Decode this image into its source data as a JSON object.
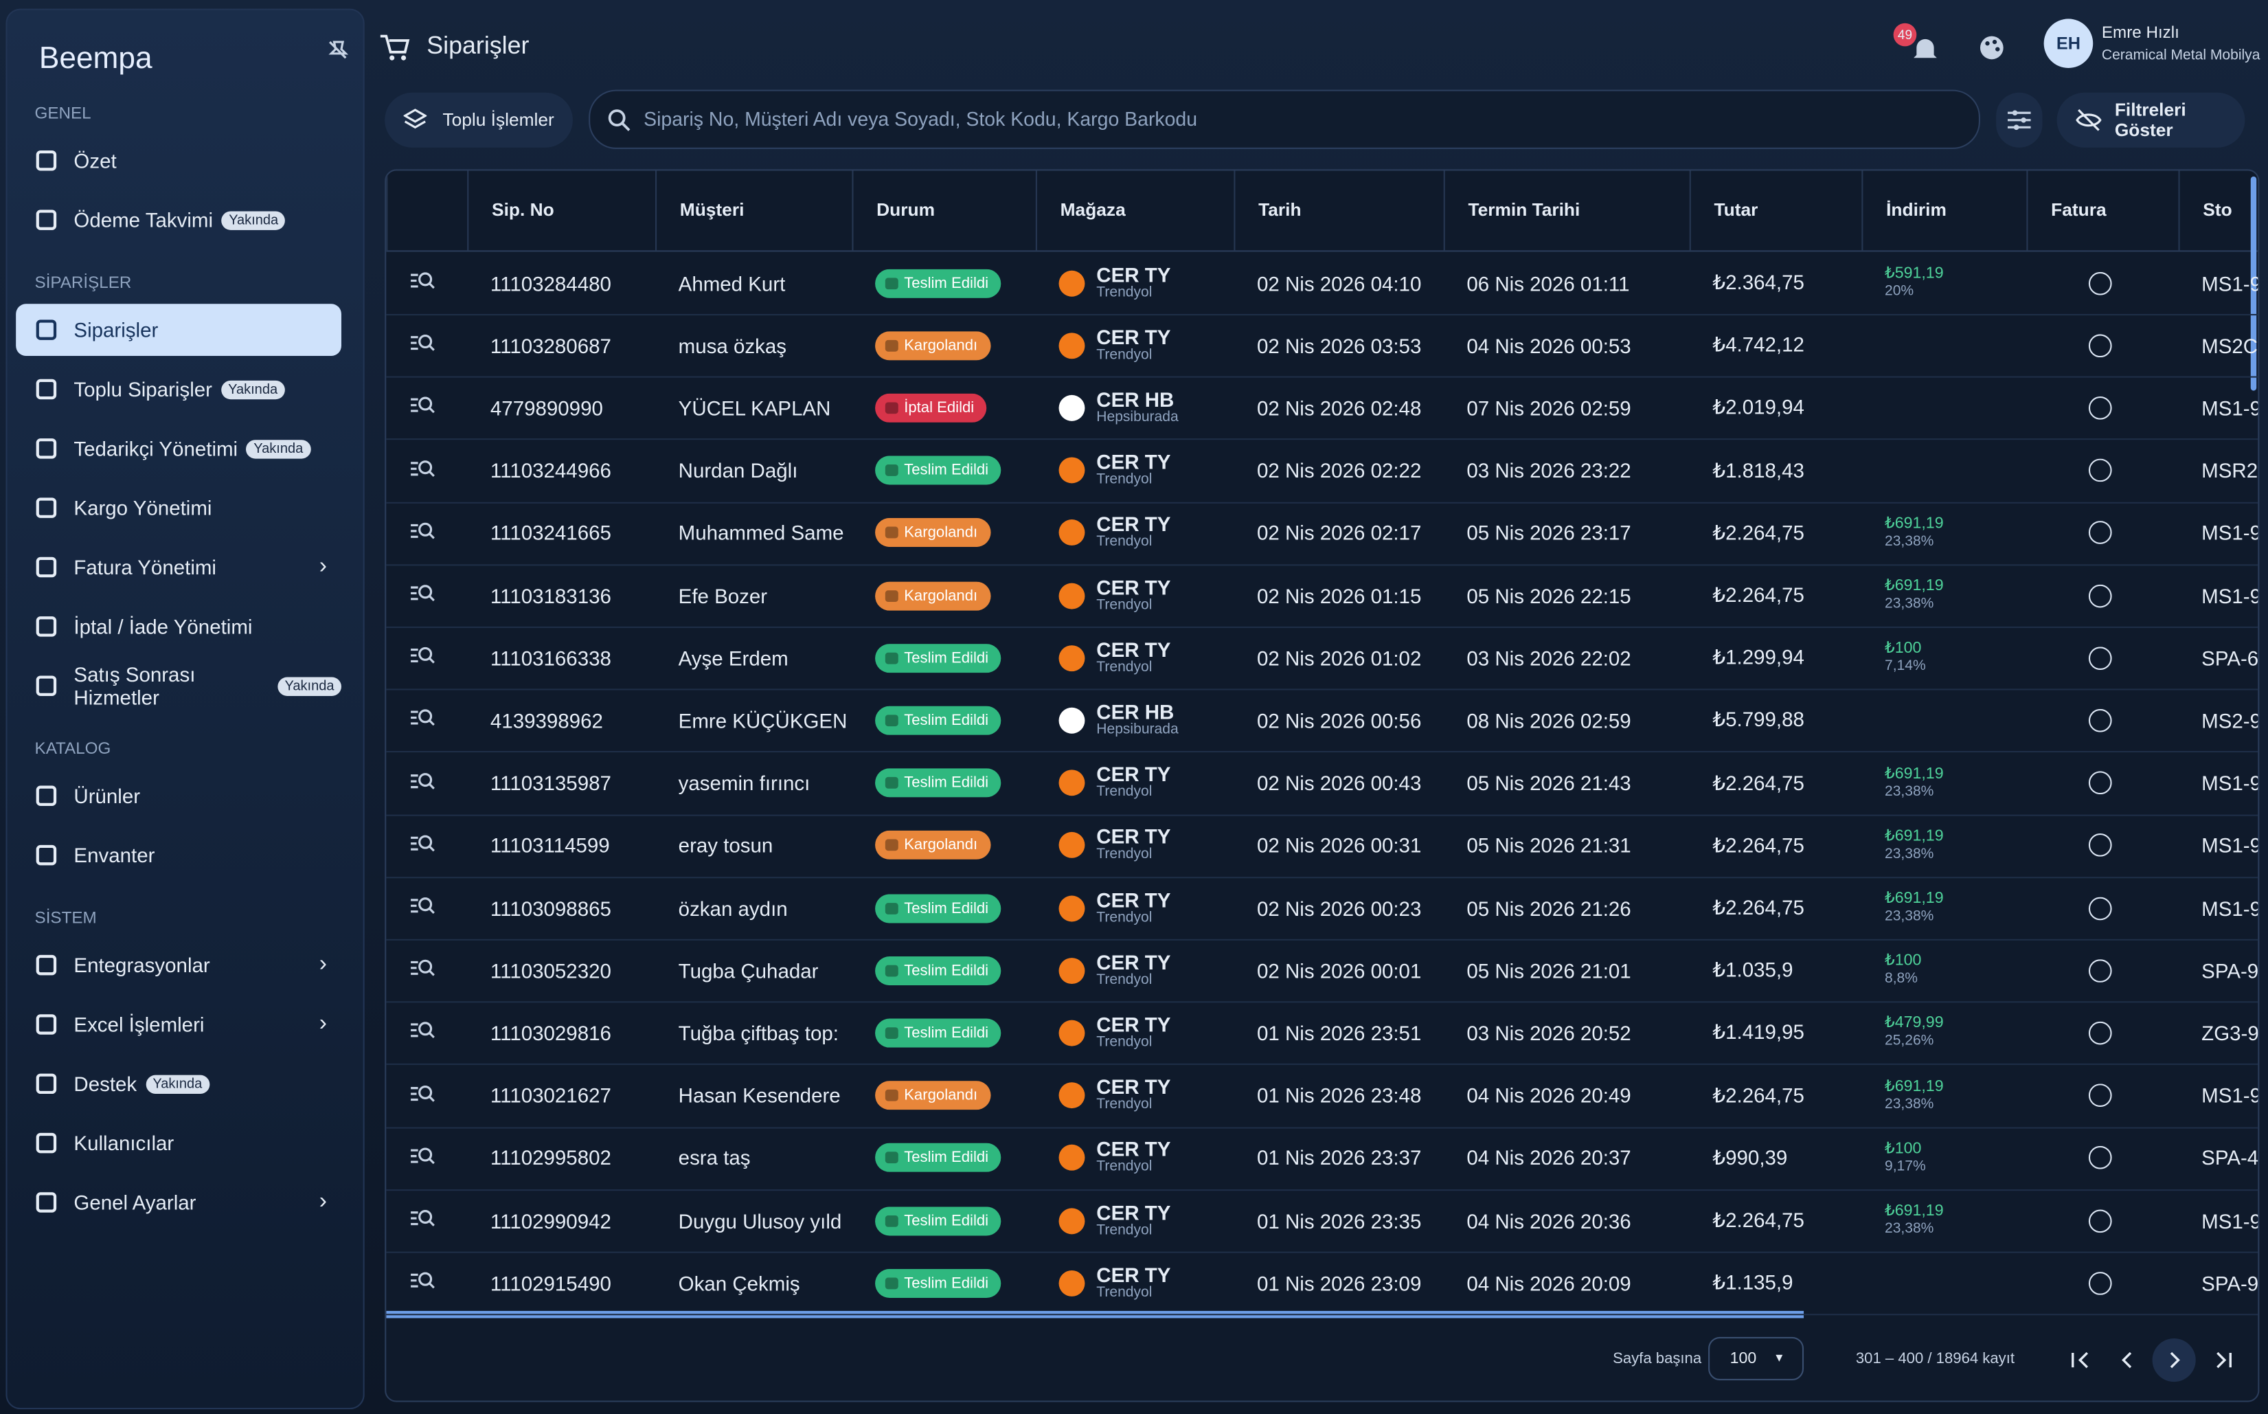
{
  "sidebar": {
    "brand": "Beempa",
    "sections": [
      {
        "title": "GENEL",
        "items": [
          {
            "label": "Özet"
          },
          {
            "label": "Ödeme Takvimi",
            "badge": "Yakında"
          }
        ]
      },
      {
        "title": "SİPARİŞLER",
        "items": [
          {
            "label": "Siparişler",
            "active": true
          },
          {
            "label": "Toplu Siparişler",
            "badge": "Yakında"
          },
          {
            "label": "Tedarikçi Yönetimi",
            "badge": "Yakında"
          },
          {
            "label": "Kargo Yönetimi"
          },
          {
            "label": "Fatura Yönetimi",
            "submenu": true
          },
          {
            "label": "İptal / İade Yönetimi"
          },
          {
            "label": "Satış Sonrası Hizmetler",
            "badge": "Yakında"
          }
        ]
      },
      {
        "title": "KATALOG",
        "items": [
          {
            "label": "Ürünler"
          },
          {
            "label": "Envanter"
          }
        ]
      },
      {
        "title": "SİSTEM",
        "items": [
          {
            "label": "Entegrasyonlar",
            "submenu": true
          },
          {
            "label": "Excel İşlemleri",
            "submenu": true
          },
          {
            "label": "Destek",
            "badge": "Yakında"
          },
          {
            "label": "Kullanıcılar"
          },
          {
            "label": "Genel Ayarlar",
            "submenu": true
          }
        ]
      }
    ]
  },
  "header": {
    "title": "Siparişler",
    "notifications": "49",
    "initials": "EH",
    "user": "Emre Hızlı",
    "company": "Ceramical Metal Mobilya"
  },
  "toolbar": {
    "bulk": "Toplu İşlemler",
    "search": "Sipariş No, Müşteri Adı veya Soyadı, Stok Kodu, Kargo Barkodu",
    "filters": "Filtreleri Göster"
  },
  "table": {
    "columns": [
      "Sip. No",
      "Müşteri",
      "Durum",
      "Mağaza",
      "Tarih",
      "Termin Tarihi",
      "Tutar",
      "İndirim",
      "Fatura",
      "Sto"
    ],
    "rows": [
      {
        "no": "11103284480",
        "customer": "Ahmed Kurt",
        "status": "Teslim Edildi",
        "status_color": "#2fb87f",
        "store": "CER TY",
        "channel": "Trendyol",
        "date": "02 Nis 2026 04:10",
        "term": "06 Nis 2026 01:11",
        "amount": "₺2.364,75",
        "discount": "₺591,19",
        "discount_pct": "20%",
        "stock": "MS1-9"
      },
      {
        "no": "11103280687",
        "customer": "musa özkaş",
        "status": "Kargolandı",
        "status_color": "#e8863a",
        "store": "CER TY",
        "channel": "Trendyol",
        "date": "02 Nis 2026 03:53",
        "term": "04 Nis 2026 00:53",
        "amount": "₺4.742,12",
        "discount": null,
        "discount_pct": null,
        "stock": "MS2C"
      },
      {
        "no": "4779890990",
        "customer": "YÜCEL KAPLAN",
        "status": "İptal Edildi",
        "status_color": "#d8344a",
        "store": "CER HB",
        "channel": "Hepsiburada",
        "date": "02 Nis 2026 02:48",
        "term": "07 Nis 2026 02:59",
        "amount": "₺2.019,94",
        "discount": null,
        "discount_pct": null,
        "stock": "MS1-9"
      },
      {
        "no": "11103244966",
        "customer": "Nurdan Dağlı",
        "status": "Teslim Edildi",
        "status_color": "#2fb87f",
        "store": "CER TY",
        "channel": "Trendyol",
        "date": "02 Nis 2026 02:22",
        "term": "03 Nis 2026 23:22",
        "amount": "₺1.818,43",
        "discount": null,
        "discount_pct": null,
        "stock": "MSR2-"
      },
      {
        "no": "11103241665",
        "customer": "Muhammed Same",
        "status": "Kargolandı",
        "status_color": "#e8863a",
        "store": "CER TY",
        "channel": "Trendyol",
        "date": "02 Nis 2026 02:17",
        "term": "05 Nis 2026 23:17",
        "amount": "₺2.264,75",
        "discount": "₺691,19",
        "discount_pct": "23,38%",
        "stock": "MS1-9"
      },
      {
        "no": "11103183136",
        "customer": "Efe Bozer",
        "status": "Kargolandı",
        "status_color": "#e8863a",
        "store": "CER TY",
        "channel": "Trendyol",
        "date": "02 Nis 2026 01:15",
        "term": "05 Nis 2026 22:15",
        "amount": "₺2.264,75",
        "discount": "₺691,19",
        "discount_pct": "23,38%",
        "stock": "MS1-9"
      },
      {
        "no": "11103166338",
        "customer": "Ayşe Erdem",
        "status": "Teslim Edildi",
        "status_color": "#2fb87f",
        "store": "CER TY",
        "channel": "Trendyol",
        "date": "02 Nis 2026 01:02",
        "term": "03 Nis 2026 22:02",
        "amount": "₺1.299,94",
        "discount": "₺100",
        "discount_pct": "7,14%",
        "stock": "SPA-6"
      },
      {
        "no": "4139398962",
        "customer": "Emre KÜÇÜKGEN",
        "status": "Teslim Edildi",
        "status_color": "#2fb87f",
        "store": "CER HB",
        "channel": "Hepsiburada",
        "date": "02 Nis 2026 00:56",
        "term": "08 Nis 2026 02:59",
        "amount": "₺5.799,88",
        "discount": null,
        "discount_pct": null,
        "stock": "MS2-9"
      },
      {
        "no": "11103135987",
        "customer": "yasemin fırıncı",
        "status": "Teslim Edildi",
        "status_color": "#2fb87f",
        "store": "CER TY",
        "channel": "Trendyol",
        "date": "02 Nis 2026 00:43",
        "term": "05 Nis 2026 21:43",
        "amount": "₺2.264,75",
        "discount": "₺691,19",
        "discount_pct": "23,38%",
        "stock": "MS1-9"
      },
      {
        "no": "11103114599",
        "customer": "eray tosun",
        "status": "Kargolandı",
        "status_color": "#e8863a",
        "store": "CER TY",
        "channel": "Trendyol",
        "date": "02 Nis 2026 00:31",
        "term": "05 Nis 2026 21:31",
        "amount": "₺2.264,75",
        "discount": "₺691,19",
        "discount_pct": "23,38%",
        "stock": "MS1-9"
      },
      {
        "no": "11103098865",
        "customer": "özkan aydın",
        "status": "Teslim Edildi",
        "status_color": "#2fb87f",
        "store": "CER TY",
        "channel": "Trendyol",
        "date": "02 Nis 2026 00:23",
        "term": "05 Nis 2026 21:26",
        "amount": "₺2.264,75",
        "discount": "₺691,19",
        "discount_pct": "23,38%",
        "stock": "MS1-9"
      },
      {
        "no": "11103052320",
        "customer": "Tugba Çuhadar",
        "status": "Teslim Edildi",
        "status_color": "#2fb87f",
        "store": "CER TY",
        "channel": "Trendyol",
        "date": "02 Nis 2026 00:01",
        "term": "05 Nis 2026 21:01",
        "amount": "₺1.035,9",
        "discount": "₺100",
        "discount_pct": "8,8%",
        "stock": "SPA-9"
      },
      {
        "no": "11103029816",
        "customer": "Tuğba çiftbaş top:",
        "status": "Teslim Edildi",
        "status_color": "#2fb87f",
        "store": "CER TY",
        "channel": "Trendyol",
        "date": "01 Nis 2026 23:51",
        "term": "03 Nis 2026 20:52",
        "amount": "₺1.419,95",
        "discount": "₺479,99",
        "discount_pct": "25,26%",
        "stock": "ZG3-9"
      },
      {
        "no": "11103021627",
        "customer": "Hasan Kesendere",
        "status": "Kargolandı",
        "status_color": "#e8863a",
        "store": "CER TY",
        "channel": "Trendyol",
        "date": "01 Nis 2026 23:48",
        "term": "04 Nis 2026 20:49",
        "amount": "₺2.264,75",
        "discount": "₺691,19",
        "discount_pct": "23,38%",
        "stock": "MS1-9"
      },
      {
        "no": "11102995802",
        "customer": "esra taş",
        "status": "Teslim Edildi",
        "status_color": "#2fb87f",
        "store": "CER TY",
        "channel": "Trendyol",
        "date": "01 Nis 2026 23:37",
        "term": "04 Nis 2026 20:37",
        "amount": "₺990,39",
        "discount": "₺100",
        "discount_pct": "9,17%",
        "stock": "SPA-4"
      },
      {
        "no": "11102990942",
        "customer": "Duygu Ulusoy yıld",
        "status": "Teslim Edildi",
        "status_color": "#2fb87f",
        "store": "CER TY",
        "channel": "Trendyol",
        "date": "01 Nis 2026 23:35",
        "term": "04 Nis 2026 20:36",
        "amount": "₺2.264,75",
        "discount": "₺691,19",
        "discount_pct": "23,38%",
        "stock": "MS1-9"
      },
      {
        "no": "11102915490",
        "customer": "Okan Çekmiş",
        "status": "Teslim Edildi",
        "status_color": "#2fb87f",
        "store": "CER TY",
        "channel": "Trendyol",
        "date": "01 Nis 2026 23:09",
        "term": "04 Nis 2026 20:09",
        "amount": "₺1.135,9",
        "discount": null,
        "discount_pct": null,
        "stock": "SPA-9"
      }
    ]
  },
  "footer": {
    "per_page_label": "Sayfa başına",
    "per_page": "100",
    "range": "301 – 400 / 18964 kayıt"
  }
}
